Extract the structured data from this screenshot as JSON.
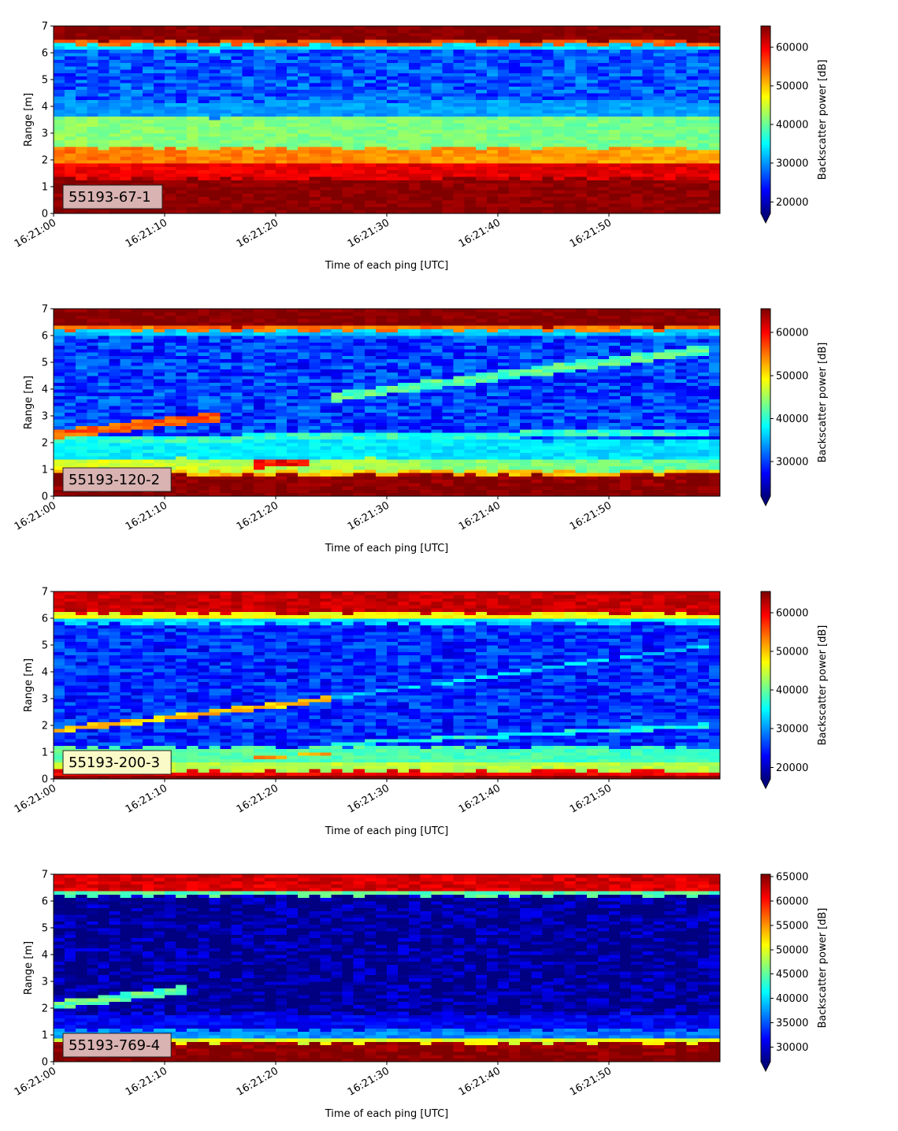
{
  "chart_data": [
    {
      "type": "heatmap",
      "label": "55193-67-1",
      "label_box_color": "#d9b2b2",
      "xlabel": "Time of each ping [UTC]",
      "ylabel": "Range [m]",
      "xlim": [
        "16:21:00",
        "16:21:59"
      ],
      "ylim": [
        0,
        7
      ],
      "xticks": [
        "16:21:00",
        "16:21:10",
        "16:21:20",
        "16:21:30",
        "16:21:40",
        "16:21:50"
      ],
      "yticks": [
        0,
        1,
        2,
        3,
        4,
        5,
        6,
        7
      ],
      "colorbar": {
        "label": "Backscatter power [dB]",
        "vmin": 17000,
        "vmax": 65500,
        "extend": "min",
        "ticks": [
          20000,
          30000,
          40000,
          50000,
          60000
        ]
      },
      "base_level": 27000,
      "layers": [
        {
          "y0": 0.0,
          "y1": 0.25,
          "start": 65535,
          "end": 65535
        },
        {
          "y0": 0.25,
          "y1": 1.3,
          "start": 65000,
          "end": 65000
        },
        {
          "y0": 1.3,
          "y1": 1.9,
          "start": 60000,
          "end": 61000
        },
        {
          "y0": 1.9,
          "y1": 2.45,
          "start": 54000,
          "end": 51500
        },
        {
          "y0": 2.45,
          "y1": 3.6,
          "start": 42000,
          "end": 40500
        },
        {
          "y0": 3.6,
          "y1": 4.2,
          "start": 30000,
          "end": 31000
        },
        {
          "y0": 6.1,
          "y1": 6.3,
          "start": 34000,
          "end": 34000
        },
        {
          "y0": 6.3,
          "y1": 6.45,
          "start": 55000,
          "end": 55000
        },
        {
          "y0": 6.45,
          "y1": 7.0,
          "start": 65535,
          "end": 65535
        }
      ],
      "tracks": []
    },
    {
      "type": "heatmap",
      "label": "55193-120-2",
      "label_box_color": "#d9b2b2",
      "xlabel": "Time of each ping [UTC]",
      "ylabel": "Range [m]",
      "xlim": [
        "16:21:00",
        "16:21:59"
      ],
      "ylim": [
        0,
        7
      ],
      "xticks": [
        "16:21:00",
        "16:21:10",
        "16:21:20",
        "16:21:30",
        "16:21:40",
        "16:21:50"
      ],
      "yticks": [
        0,
        1,
        2,
        3,
        4,
        5,
        6,
        7
      ],
      "colorbar": {
        "label": "Backscatter power [dB]",
        "vmin": 22000,
        "vmax": 65500,
        "extend": "min",
        "ticks": [
          30000,
          40000,
          50000,
          60000
        ]
      },
      "base_level": 30000,
      "layers": [
        {
          "y0": 0.0,
          "y1": 0.25,
          "start": 65535,
          "end": 65535
        },
        {
          "y0": 0.25,
          "y1": 0.8,
          "start": 65000,
          "end": 65000
        },
        {
          "y0": 0.8,
          "y1": 0.95,
          "start": 52000,
          "end": 52000
        },
        {
          "y0": 0.95,
          "y1": 1.4,
          "start": 48000,
          "end": 42000
        },
        {
          "y0": 1.4,
          "y1": 2.1,
          "start": 38000,
          "end": 37000
        },
        {
          "y0": 6.0,
          "y1": 6.2,
          "start": 36000,
          "end": 36000
        },
        {
          "y0": 6.2,
          "y1": 6.35,
          "start": 55000,
          "end": 55000
        },
        {
          "y0": 6.35,
          "y1": 7.0,
          "start": 65535,
          "end": 65535
        }
      ],
      "tracks": [
        {
          "t0": 0,
          "t1": 15,
          "y_start": 2.3,
          "y_end": 3.0,
          "width": 0.35,
          "level": 56000
        },
        {
          "t0": 0,
          "t1": 59,
          "y_start": 2.1,
          "y_end": 2.4,
          "width": 0.25,
          "level": 40000
        },
        {
          "t0": 25,
          "t1": 59,
          "y_start": 3.7,
          "y_end": 5.5,
          "width": 0.35,
          "level": 42000
        },
        {
          "t0": 18,
          "t1": 23,
          "y_start": 1.2,
          "y_end": 1.25,
          "width": 0.3,
          "level": 60000
        }
      ]
    },
    {
      "type": "heatmap",
      "label": "55193-200-3",
      "label_box_color": "#fafac8",
      "xlabel": "Time of each ping [UTC]",
      "ylabel": "Range [m]",
      "xlim": [
        "16:21:00",
        "16:21:59"
      ],
      "ylim": [
        0,
        7
      ],
      "xticks": [
        "16:21:00",
        "16:21:10",
        "16:21:20",
        "16:21:30",
        "16:21:40",
        "16:21:50"
      ],
      "yticks": [
        0,
        1,
        2,
        3,
        4,
        5,
        6,
        7
      ],
      "colorbar": {
        "label": "Backscatter power [dB]",
        "vmin": 17000,
        "vmax": 65500,
        "extend": "min",
        "ticks": [
          20000,
          30000,
          40000,
          50000,
          60000
        ]
      },
      "base_level": 25000,
      "layers": [
        {
          "y0": 0.0,
          "y1": 0.12,
          "start": 65535,
          "end": 65535
        },
        {
          "y0": 0.12,
          "y1": 0.3,
          "start": 60000,
          "end": 60000
        },
        {
          "y0": 0.3,
          "y1": 0.6,
          "start": 44000,
          "end": 44000
        },
        {
          "y0": 0.6,
          "y1": 1.2,
          "start": 40000,
          "end": 38000
        },
        {
          "y0": 5.8,
          "y1": 6.0,
          "start": 34000,
          "end": 34000
        },
        {
          "y0": 6.0,
          "y1": 6.2,
          "start": 47000,
          "end": 47000
        },
        {
          "y0": 6.2,
          "y1": 7.0,
          "start": 62000,
          "end": 62000
        }
      ],
      "tracks": [
        {
          "t0": 0,
          "t1": 25,
          "y_start": 1.8,
          "y_end": 3.0,
          "width": 0.2,
          "level": 50000
        },
        {
          "t0": 25,
          "t1": 59,
          "y_start": 3.0,
          "y_end": 5.0,
          "width": 0.12,
          "level": 33000
        },
        {
          "t0": 25,
          "t1": 59,
          "y_start": 1.3,
          "y_end": 2.0,
          "width": 0.15,
          "level": 36000
        },
        {
          "t0": 18,
          "t1": 25,
          "y_start": 0.85,
          "y_end": 0.9,
          "width": 0.12,
          "level": 52000
        }
      ]
    },
    {
      "type": "heatmap",
      "label": "55193-769-4",
      "label_box_color": "#d9b2b2",
      "xlabel": "Time of each ping [UTC]",
      "ylabel": "Range [m]",
      "xlim": [
        "16:21:00",
        "16:21:59"
      ],
      "ylim": [
        0,
        7
      ],
      "xticks": [
        "16:21:00",
        "16:21:10",
        "16:21:20",
        "16:21:30",
        "16:21:40",
        "16:21:50"
      ],
      "yticks": [
        0,
        1,
        2,
        3,
        4,
        5,
        6,
        7
      ],
      "colorbar": {
        "label": "Backscatter power [dB]",
        "vmin": 27000,
        "vmax": 65500,
        "extend": "min",
        "ticks": [
          30000,
          35000,
          40000,
          45000,
          50000,
          55000,
          60000,
          65000
        ]
      },
      "base_level": 27500,
      "layers": [
        {
          "y0": 0.0,
          "y1": 0.25,
          "start": 65535,
          "end": 65535
        },
        {
          "y0": 0.25,
          "y1": 0.7,
          "start": 65000,
          "end": 65000
        },
        {
          "y0": 0.7,
          "y1": 0.85,
          "start": 50000,
          "end": 50000
        },
        {
          "y0": 0.85,
          "y1": 1.2,
          "start": 38000,
          "end": 36000
        },
        {
          "y0": 1.2,
          "y1": 1.8,
          "start": 31500,
          "end": 31500
        },
        {
          "y0": 6.2,
          "y1": 6.35,
          "start": 45000,
          "end": 45000
        },
        {
          "y0": 6.35,
          "y1": 7.0,
          "start": 62000,
          "end": 62000
        }
      ],
      "tracks": [
        {
          "t0": 0,
          "t1": 12,
          "y_start": 2.1,
          "y_end": 2.7,
          "width": 0.3,
          "level": 45000
        }
      ]
    }
  ]
}
